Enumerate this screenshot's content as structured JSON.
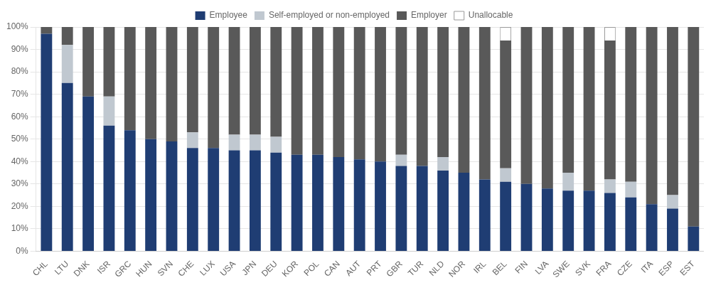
{
  "chart_data": {
    "type": "bar",
    "stacked": true,
    "categories": [
      "CHL",
      "LTU",
      "DNK",
      "ISR",
      "GRC",
      "HUN",
      "SVN",
      "CHE",
      "LUX",
      "USA",
      "JPN",
      "DEU",
      "KOR",
      "POL",
      "CAN",
      "AUT",
      "PRT",
      "GBR",
      "TUR",
      "NLD",
      "NOR",
      "IRL",
      "BEL",
      "FIN",
      "LVA",
      "SWE",
      "SVK",
      "FRA",
      "CZE",
      "ITA",
      "ESP",
      "EST"
    ],
    "series": [
      {
        "name": "Employee",
        "color": "#1F3D73",
        "values": [
          97,
          75,
          69,
          56,
          54,
          50,
          49,
          46,
          46,
          45,
          45,
          44,
          43,
          43,
          42,
          41,
          40,
          38,
          38,
          36,
          35,
          32,
          31,
          30,
          28,
          27,
          27,
          26,
          24,
          21,
          19,
          11
        ]
      },
      {
        "name": "Self-employed or non-employed",
        "color": "#C0C8D0",
        "values": [
          0,
          17,
          0,
          13,
          0,
          0,
          0,
          7,
          0,
          7,
          7,
          7,
          0,
          0,
          0,
          0,
          0,
          5,
          0,
          6,
          0,
          0,
          6,
          0,
          0,
          8,
          0,
          6,
          7,
          0,
          6,
          0
        ]
      },
      {
        "name": "Employer",
        "color": "#595959",
        "values": [
          3,
          8,
          31,
          31,
          46,
          50,
          51,
          47,
          54,
          48,
          48,
          49,
          57,
          57,
          58,
          59,
          60,
          57,
          62,
          58,
          65,
          68,
          57,
          70,
          72,
          65,
          73,
          62,
          69,
          79,
          75,
          89
        ]
      },
      {
        "name": "Unallocable",
        "color": "#FFFFFF",
        "values": [
          0,
          0,
          0,
          0,
          0,
          0,
          0,
          0,
          0,
          0,
          0,
          0,
          0,
          0,
          0,
          0,
          0,
          0,
          0,
          0,
          0,
          0,
          6,
          0,
          0,
          0,
          0,
          6,
          0,
          0,
          0,
          0
        ]
      }
    ],
    "ylim": [
      0,
      100
    ],
    "yticks": [
      {
        "value": 0,
        "label": "0%"
      },
      {
        "value": 10,
        "label": "10%"
      },
      {
        "value": 20,
        "label": "20%"
      },
      {
        "value": 30,
        "label": "30%"
      },
      {
        "value": 40,
        "label": "40%"
      },
      {
        "value": 50,
        "label": "50%"
      },
      {
        "value": 60,
        "label": "60%"
      },
      {
        "value": 70,
        "label": "70%"
      },
      {
        "value": 80,
        "label": "80%"
      },
      {
        "value": 90,
        "label": "90%"
      },
      {
        "value": 100,
        "label": "100%"
      }
    ],
    "grid": true,
    "legend": "top"
  }
}
